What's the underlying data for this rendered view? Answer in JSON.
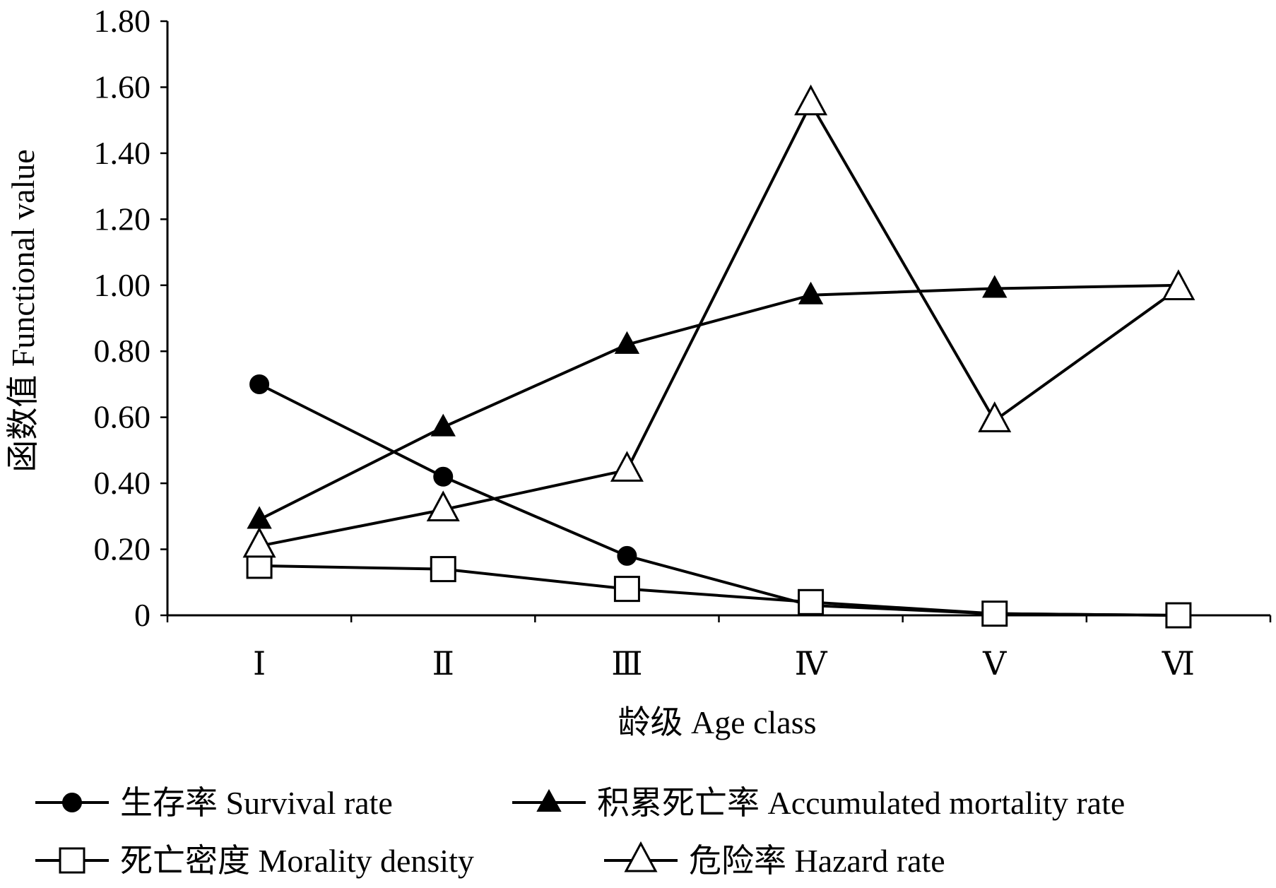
{
  "chart_data": {
    "type": "line",
    "title": "",
    "xlabel": "龄级  Age class",
    "ylabel": "函数值  Functional value",
    "categories": [
      "Ⅰ",
      "Ⅱ",
      "Ⅲ",
      "Ⅳ",
      "Ⅴ",
      "Ⅵ"
    ],
    "ylim": [
      0,
      1.8
    ],
    "yticks": [
      "0",
      "0.20",
      "0.40",
      "0.60",
      "0.80",
      "1.00",
      "1.20",
      "1.40",
      "1.60",
      "1.80"
    ],
    "grid": false,
    "legend_position": "bottom",
    "series": [
      {
        "name": "生存率  Survival rate",
        "marker": "filled-circle",
        "color": "#000000",
        "values": [
          0.7,
          0.42,
          0.18,
          0.03,
          0.005,
          0.0
        ]
      },
      {
        "name": "积累死亡率  Accumulated mortality rate",
        "marker": "filled-triangle",
        "color": "#000000",
        "values": [
          0.29,
          0.57,
          0.82,
          0.97,
          0.99,
          1.0
        ]
      },
      {
        "name": "死亡密度  Morality density",
        "marker": "open-square",
        "color": "#000000",
        "values": [
          0.15,
          0.14,
          0.08,
          0.04,
          0.005,
          0.0
        ]
      },
      {
        "name": "危险率  Hazard rate",
        "marker": "open-triangle",
        "color": "#000000",
        "values": [
          0.21,
          0.32,
          0.44,
          1.55,
          0.59,
          0.99
        ]
      }
    ]
  }
}
